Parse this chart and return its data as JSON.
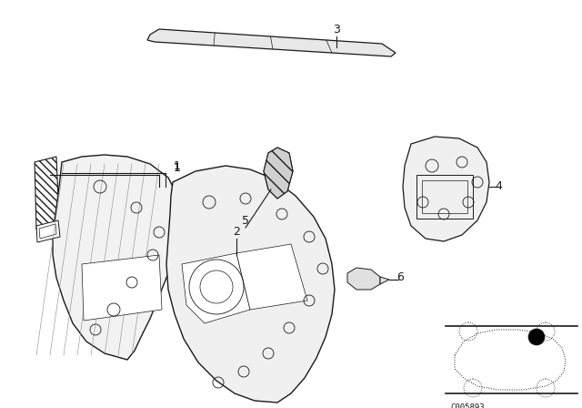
{
  "bg_color": "#ffffff",
  "line_color": "#1a1a1a",
  "diagram_code": "C005893",
  "fig_width": 6.4,
  "fig_height": 4.48,
  "dpi": 100
}
